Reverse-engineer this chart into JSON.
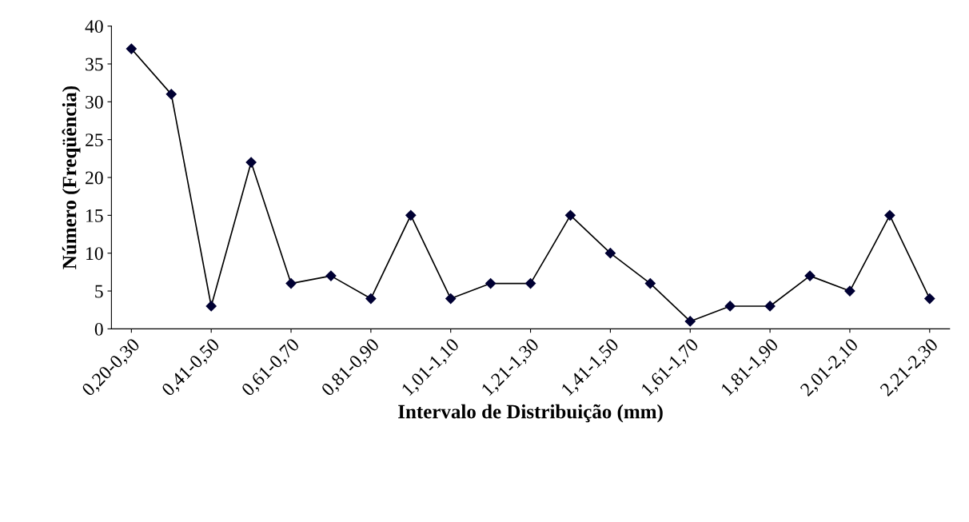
{
  "chart_data": {
    "type": "line",
    "xlabel": "Intervalo de Distribuição (mm)",
    "ylabel": "Número (Freqüência)",
    "categories": [
      "0,20-0,30",
      null,
      "0,41-0,50",
      null,
      "0,61-0,70",
      null,
      "0,81-0,90",
      null,
      "1,01-1,10",
      null,
      "1,21-1,30",
      null,
      "1,41-1,50",
      null,
      "1,61-1,70",
      null,
      "1,81-1,90",
      null,
      "2,01-2,10",
      null,
      "2,21-2,30"
    ],
    "series": [
      {
        "color": "#000033",
        "values": [
          37,
          31,
          3,
          22,
          6,
          7,
          4,
          15,
          4,
          6,
          6,
          15,
          10,
          6,
          1,
          3,
          3,
          7,
          5,
          15,
          4
        ]
      }
    ],
    "ylim": [
      0,
      40
    ],
    "yticks": [
      0,
      5,
      10,
      15,
      20,
      25,
      30,
      35,
      40
    ],
    "grid": false,
    "legend": false,
    "marker": "diamond",
    "line_style": "solid"
  }
}
